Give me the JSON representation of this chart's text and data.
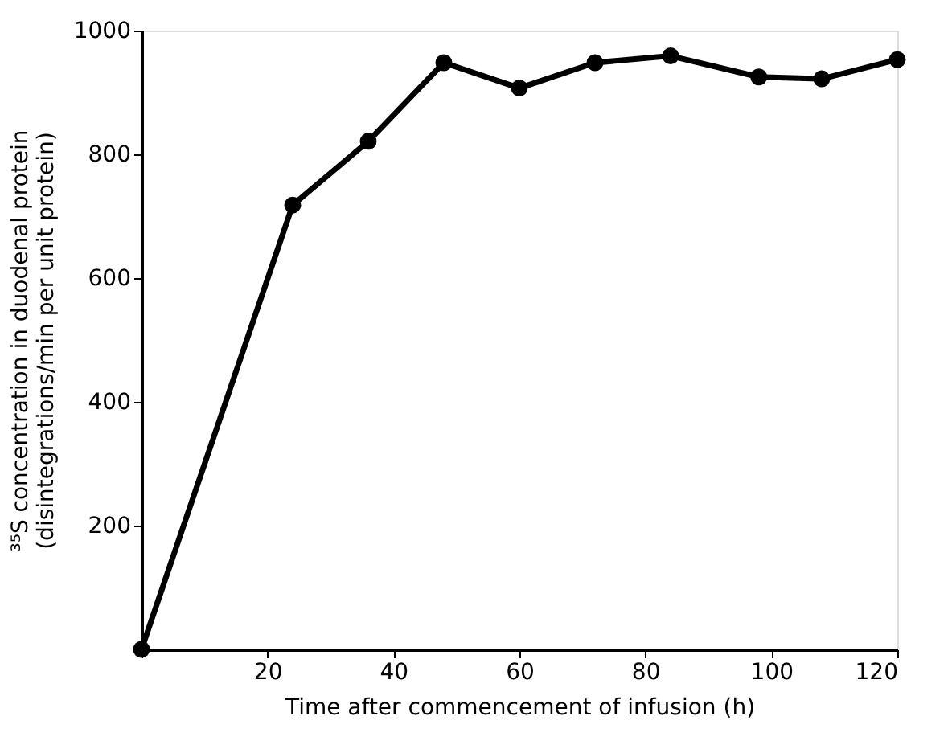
{
  "chart_data": {
    "type": "line",
    "xlabel": "Time after commencement of infusion (h)",
    "ylabel": "³⁵S concentration in duodenal protein\n(disintegrations/min per unit protein)",
    "x": [
      0,
      24,
      36,
      48,
      60,
      72,
      84,
      98,
      108,
      120
    ],
    "series": [
      {
        "color": "#000000",
        "values": [
          0,
          718,
          821,
          948,
          907,
          948,
          959,
          925,
          922,
          953
        ]
      }
    ],
    "xlim": [
      0,
      120
    ],
    "ylim": [
      0,
      1000
    ],
    "xticks": [
      {
        "value": 0,
        "label": null
      },
      20,
      40,
      60,
      80,
      100,
      120
    ],
    "yticks": [
      {
        "value": 0,
        "label": null
      },
      200,
      400,
      600,
      800,
      1000
    ],
    "marker": "circle",
    "line_style": "solid",
    "grid": false
  }
}
